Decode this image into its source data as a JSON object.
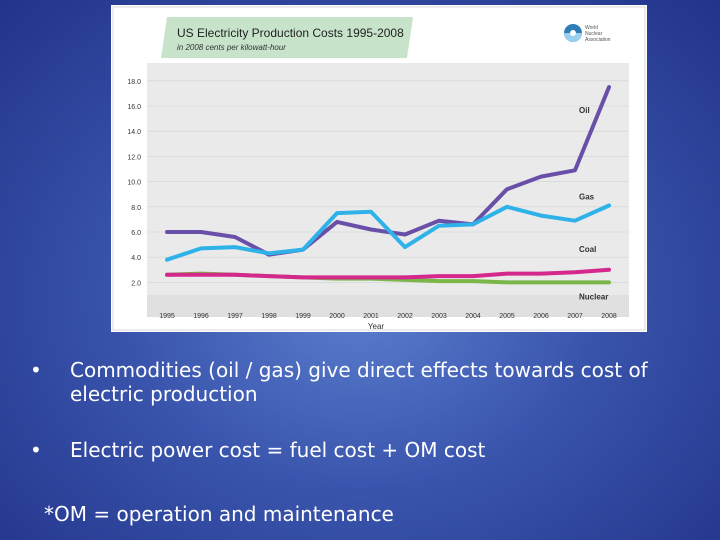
{
  "chart_data": {
    "type": "line",
    "title": "US Electricity Production Costs 1995-2008",
    "subtitle": "in 2008 cents per kilowatt-hour",
    "xlabel": "Year",
    "ylabel": "",
    "x": [
      "1995",
      "1996",
      "1997",
      "1998",
      "1999",
      "2000",
      "2001",
      "2002",
      "2003",
      "2004",
      "2005",
      "2006",
      "2007",
      "2008"
    ],
    "y_ticks": [
      "2.0",
      "4.0",
      "6.0",
      "8.0",
      "10.0",
      "12.0",
      "14.0",
      "16.0",
      "18.0"
    ],
    "ylim": [
      0,
      18.5
    ],
    "logo_text": "World Nuclear Association",
    "series": [
      {
        "name": "Oil",
        "color": "#6a4fa8",
        "values": [
          6.0,
          6.0,
          5.6,
          4.2,
          4.6,
          6.8,
          6.2,
          5.8,
          6.9,
          6.6,
          9.4,
          10.4,
          10.9,
          17.5
        ]
      },
      {
        "name": "Gas",
        "color": "#2fb2e8",
        "values": [
          3.8,
          4.7,
          4.8,
          4.3,
          4.6,
          7.5,
          7.6,
          4.8,
          6.5,
          6.6,
          8.0,
          7.3,
          6.9,
          8.1
        ]
      },
      {
        "name": "Coal",
        "color": "#d4288c",
        "values": [
          2.6,
          2.6,
          2.6,
          2.5,
          2.4,
          2.4,
          2.4,
          2.4,
          2.5,
          2.5,
          2.7,
          2.7,
          2.8,
          3.0
        ]
      },
      {
        "name": "Nuclear",
        "color": "#7ab648",
        "values": [
          2.6,
          2.7,
          2.6,
          2.5,
          2.4,
          2.3,
          2.3,
          2.2,
          2.1,
          2.1,
          2.0,
          2.0,
          2.0,
          2.0
        ]
      }
    ]
  },
  "bullets": [
    "Commodities (oil / gas) give direct effects towards cost of electric production",
    "Electric power cost = fuel cost + OM cost"
  ],
  "bullet_symbol": "•",
  "footnote": "*OM = operation and maintenance"
}
